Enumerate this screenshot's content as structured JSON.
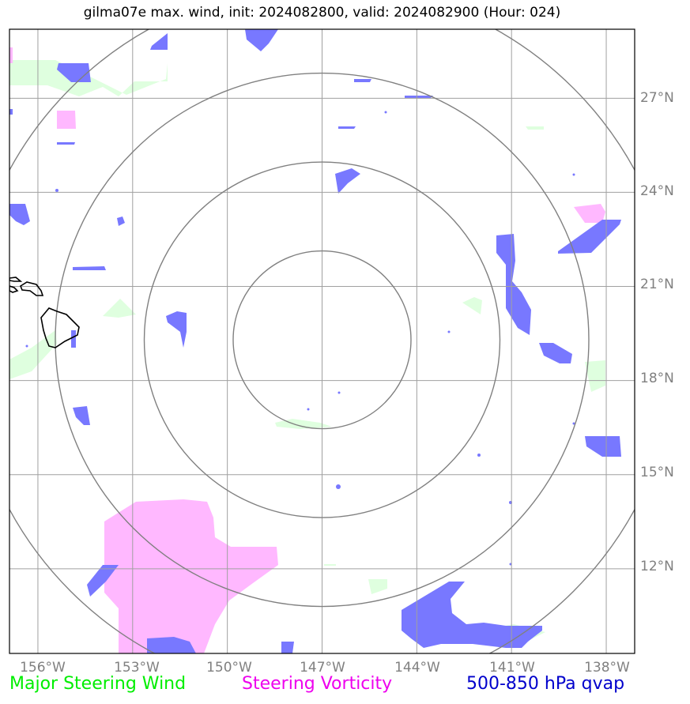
{
  "title": "gilma07e max. wind, init: 2024082800, valid: 2024082900 (Hour: 024)",
  "lon_labels": [
    "156°W",
    "153°W",
    "150°W",
    "147°W",
    "144°W",
    "141°W",
    "138°W"
  ],
  "lat_labels": [
    "27°N",
    "24°N",
    "21°N",
    "18°N",
    "15°N",
    "12°N"
  ],
  "legend": {
    "steering_wind": "Major Steering Wind",
    "steering_vorticity": "Steering Vorticity",
    "qvap": "500-850 hPa qvap"
  },
  "colors": {
    "steering_wind": "#00ee00",
    "steering_vorticity": "#ee00ee",
    "qvap": "#0000cc",
    "qvap_fill": "#7878ff",
    "vort_fill": "#ffb8ff",
    "wind_fill": "#dfffdf",
    "grid": "#a0a0a0",
    "rings": "#808080"
  },
  "map": {
    "lon_range": [
      -156.9,
      -137.1
    ],
    "lat_range": [
      9.3,
      29.2
    ],
    "center": {
      "lon": -147,
      "lat": 19.3
    },
    "ring_count": 4
  }
}
